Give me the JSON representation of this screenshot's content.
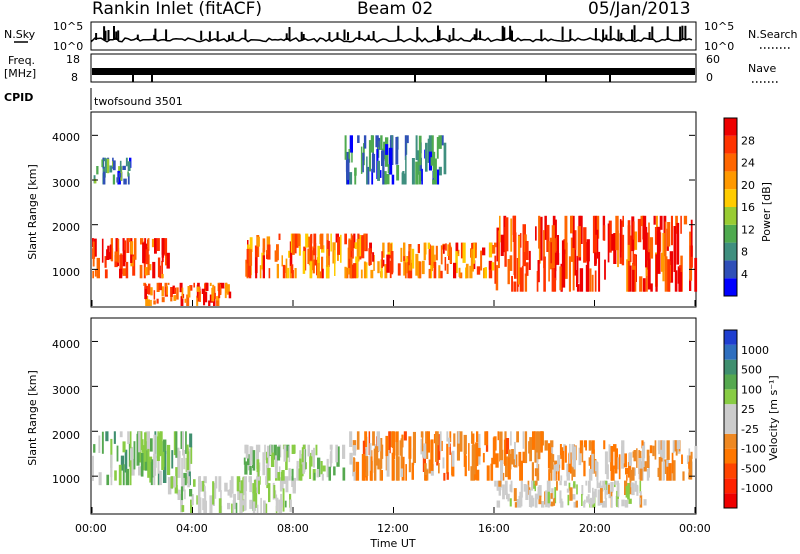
{
  "header": {
    "title": "Rankin Inlet (fitACF)",
    "beam": "Beam 02",
    "date": "05/Jan/2013"
  },
  "noise_panel": {
    "left_label": "N.Sky",
    "right_label": "N.Search",
    "left_ticks": [
      "10^5",
      "10^0"
    ],
    "right_ticks": [
      "10^5",
      "10^0"
    ]
  },
  "freq_panel": {
    "left_label_top": "Freq.",
    "left_label_unit": "[MHz]",
    "right_label": "Nave",
    "left_ticks": [
      "18",
      "8"
    ],
    "right_ticks": [
      "60",
      "0"
    ]
  },
  "cpid": {
    "label": "CPID",
    "value": "twofsound 3501"
  },
  "power_panel": {
    "ylabel": "Slant Range [km]",
    "yticks": [
      "1000",
      "2000",
      "3000",
      "4000"
    ],
    "colorbar_label": "Power [dB]",
    "colorbar_ticks": [
      "28",
      "24",
      "20",
      "16",
      "12",
      "8",
      "4"
    ],
    "colors": [
      "#0000ff",
      "#2f4fb8",
      "#3f8f7f",
      "#4faa4f",
      "#99cc33",
      "#ffcc00",
      "#ff9900",
      "#ff6600",
      "#ff3300",
      "#ee0000"
    ]
  },
  "velocity_panel": {
    "ylabel": "Slant Range [km]",
    "yticks": [
      "1000",
      "2000",
      "3000",
      "4000"
    ],
    "colorbar_label": "Velocity [m s⁻¹]",
    "colorbar_ticks": [
      "1000",
      "500",
      "100",
      "25",
      "-25",
      "-100",
      "-500",
      "-1000"
    ],
    "colors": [
      "#1f3fd0",
      "#2f6fbf",
      "#3f8f6f",
      "#55a84f",
      "#88cc44",
      "#cccccc",
      "#cccccc",
      "#ee8822",
      "#ff7700",
      "#ff4400",
      "#ff2200",
      "#ee0000"
    ]
  },
  "xaxis": {
    "label": "Time UT",
    "ticks": [
      "00:00",
      "04:00",
      "08:00",
      "12:00",
      "16:00",
      "20:00",
      "00:00"
    ]
  },
  "chart_data": [
    {
      "type": "heatmap",
      "title": "Rankin Inlet (fitACF)",
      "xlabel": "Time UT",
      "ylabel": "Slant Range [km]",
      "xlim": [
        "00:00",
        "24:00"
      ],
      "ylim": [
        180,
        4500
      ],
      "colorbar": "Power [dB]",
      "clim": [
        0,
        30
      ],
      "grid": false,
      "features": [
        {
          "time_h": [
            0,
            3
          ],
          "range_km": [
            800,
            1700
          ],
          "power_db": 28
        },
        {
          "time_h": [
            2,
            5.5
          ],
          "range_km": [
            180,
            700
          ],
          "power_db": 26
        },
        {
          "time_h": [
            6,
            11
          ],
          "range_km": [
            800,
            1800
          ],
          "power_db": 24
        },
        {
          "time_h": [
            11,
            16
          ],
          "range_km": [
            800,
            1600
          ],
          "power_db": 24
        },
        {
          "time_h": [
            16,
            24
          ],
          "range_km": [
            500,
            2200
          ],
          "power_db": 28
        },
        {
          "time_h": [
            0,
            1.5
          ],
          "range_km": [
            2900,
            3500
          ],
          "power_db": 10
        },
        {
          "time_h": [
            10,
            14
          ],
          "range_km": [
            2900,
            4000
          ],
          "power_db": 8
        }
      ]
    },
    {
      "type": "heatmap",
      "title": "Rankin Inlet (fitACF)",
      "xlabel": "Time UT",
      "ylabel": "Slant Range [km]",
      "xlim": [
        "00:00",
        "24:00"
      ],
      "ylim": [
        180,
        4500
      ],
      "colorbar": "Velocity [m s-1]",
      "clim": [
        -1000,
        1000
      ],
      "grid": false,
      "features": [
        {
          "time_h": [
            0,
            4
          ],
          "range_km": [
            800,
            2000
          ],
          "velocity": 300
        },
        {
          "time_h": [
            3,
            8
          ],
          "range_km": [
            180,
            1000
          ],
          "velocity": 100
        },
        {
          "time_h": [
            6,
            10
          ],
          "range_km": [
            900,
            1700
          ],
          "velocity": 200
        },
        {
          "time_h": [
            10,
            18
          ],
          "range_km": [
            900,
            2000
          ],
          "velocity": -300
        },
        {
          "time_h": [
            16,
            22
          ],
          "range_km": [
            300,
            900
          ],
          "velocity": 0
        },
        {
          "time_h": [
            18,
            24
          ],
          "range_km": [
            900,
            1800
          ],
          "velocity": -200
        }
      ]
    }
  ]
}
